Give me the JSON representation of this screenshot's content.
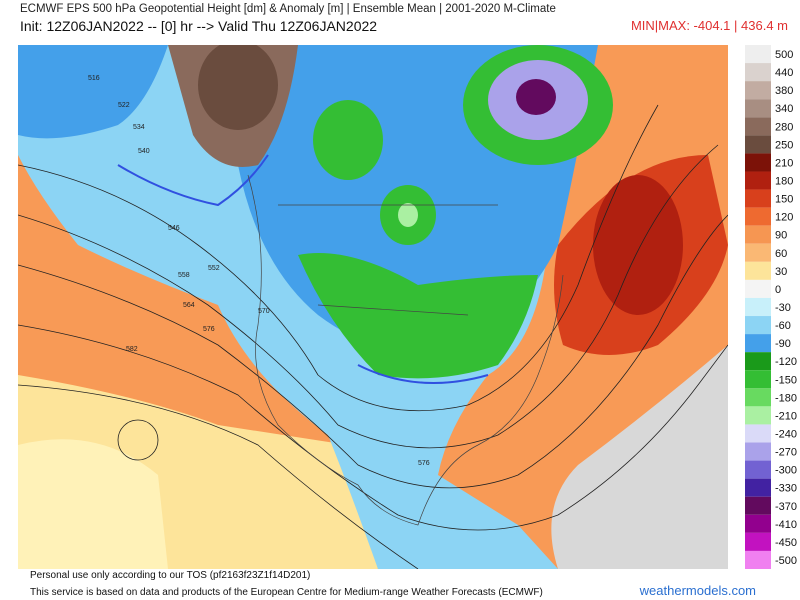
{
  "header": {
    "title": "ECMWF EPS 500 hPa Geopotential Height [dm] & Anomaly [m] | Ensemble Mean | 2001-2020 M-Climate",
    "subtitle": "Init: 12Z06JAN2022 -- [0] hr --> Valid Thu 12Z06JAN2022",
    "minmax": "MIN|MAX: -404.1 | 436.4 m"
  },
  "legend": [
    {
      "label": 500,
      "color": "#eeeeee"
    },
    {
      "label": 440,
      "color": "#dad2ce"
    },
    {
      "label": 380,
      "color": "#c2aca2"
    },
    {
      "label": 340,
      "color": "#a88e82"
    },
    {
      "label": 280,
      "color": "#8a6a5c"
    },
    {
      "label": 250,
      "color": "#6a4c3e"
    },
    {
      "label": 210,
      "color": "#7c1208"
    },
    {
      "label": 180,
      "color": "#b02010"
    },
    {
      "label": 150,
      "color": "#d8401c"
    },
    {
      "label": 120,
      "color": "#ee6a30"
    },
    {
      "label": 90,
      "color": "#f69652"
    },
    {
      "label": 60,
      "color": "#fab874"
    },
    {
      "label": 30,
      "color": "#fde49a"
    },
    {
      "label": 0,
      "color": "#f4f4f4"
    },
    {
      "label": -30,
      "color": "#c8f0fa"
    },
    {
      "label": -60,
      "color": "#8cd4f4"
    },
    {
      "label": -90,
      "color": "#44a0ea"
    },
    {
      "label": -120,
      "color": "#1a9a1a"
    },
    {
      "label": -150,
      "color": "#34be34"
    },
    {
      "label": -180,
      "color": "#68da60"
    },
    {
      "label": -210,
      "color": "#aaf0a2"
    },
    {
      "label": -240,
      "color": "#dadaf8"
    },
    {
      "label": -270,
      "color": "#aaa2ea"
    },
    {
      "label": -300,
      "color": "#7262d2"
    },
    {
      "label": -330,
      "color": "#4222a2"
    },
    {
      "label": -370,
      "color": "#620a5e"
    },
    {
      "label": -410,
      "color": "#92008e"
    },
    {
      "label": -450,
      "color": "#c212c0"
    },
    {
      "label": -500,
      "color": "#f080f0"
    }
  ],
  "map": {
    "contour_labels": [
      "516",
      "522",
      "534",
      "540",
      "546",
      "552",
      "558",
      "564",
      "570",
      "576",
      "582",
      "576"
    ]
  },
  "footer": {
    "note": "Personal use only according to our TOS (pf2163f23Z1f14D201)",
    "credit": "This service is based on data and products of the European Centre for Medium-range Weather Forecasts (ECMWF)",
    "site": "weathermodels.com"
  }
}
